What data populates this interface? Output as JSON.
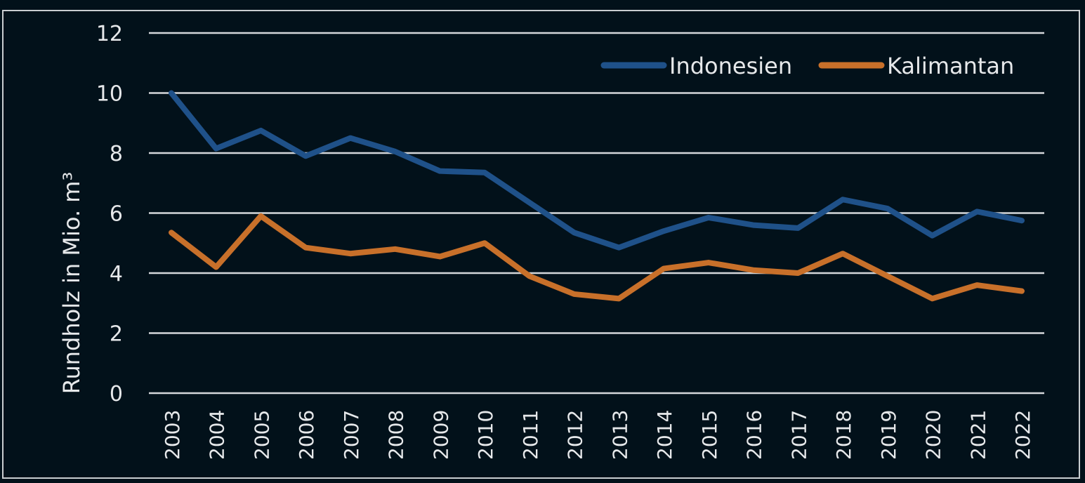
{
  "chart_data": {
    "type": "line",
    "title": "",
    "xlabel": "",
    "ylabel": "Rundholz in Mio. m³",
    "ylim": [
      0,
      12
    ],
    "yticks": [
      0,
      2,
      4,
      6,
      8,
      10,
      12
    ],
    "grid": true,
    "legend_position": "top-right",
    "categories": [
      "2003",
      "2004",
      "2005",
      "2006",
      "2007",
      "2008",
      "2009",
      "2010",
      "2011",
      "2012",
      "2013",
      "2014",
      "2015",
      "2016",
      "2017",
      "2018",
      "2019",
      "2020",
      "2021",
      "2022"
    ],
    "series": [
      {
        "name": "Indonesien",
        "color": "#1f5189",
        "values": [
          10.0,
          8.15,
          8.75,
          7.9,
          8.5,
          8.05,
          7.4,
          7.35,
          6.35,
          5.35,
          4.85,
          5.4,
          5.85,
          5.6,
          5.5,
          6.45,
          6.15,
          5.25,
          6.05,
          5.75
        ]
      },
      {
        "name": "Kalimantan",
        "color": "#c8702a",
        "values": [
          5.35,
          4.2,
          5.9,
          4.85,
          4.65,
          4.8,
          4.55,
          5.0,
          3.9,
          3.3,
          3.15,
          4.15,
          4.35,
          4.1,
          4.0,
          4.65,
          3.9,
          3.15,
          3.6,
          3.4
        ]
      }
    ]
  }
}
